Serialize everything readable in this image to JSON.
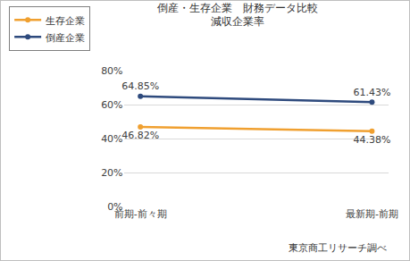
{
  "chart_data": {
    "type": "line",
    "title": "倒産・生存企業　財務データ比較",
    "subtitle": "減収企業率",
    "categories": [
      "前期-前々期",
      "最新期-前期"
    ],
    "series": [
      {
        "name": "生存企業",
        "color": "#f0a030",
        "marker": "circle",
        "line_style": "solid",
        "values": [
          46.82,
          44.38
        ],
        "value_labels": [
          "46.82%",
          "44.38%"
        ]
      },
      {
        "name": "倒産企業",
        "color": "#2e4a7d",
        "marker": "circle",
        "line_style": "solid",
        "values": [
          64.85,
          61.43
        ],
        "value_labels": [
          "64.85%",
          "61.43%"
        ]
      }
    ],
    "ylim": [
      0,
      80
    ],
    "yticks": [
      {
        "value": 0,
        "label": "0%"
      },
      {
        "value": 20,
        "label": "20%"
      },
      {
        "value": 40,
        "label": "40%"
      },
      {
        "value": 60,
        "label": "60%"
      },
      {
        "value": 80,
        "label": "80%"
      }
    ],
    "grid": true,
    "legend": "top left",
    "data_labels": true,
    "annotations": [
      "東京商工リサーチ調べ"
    ]
  }
}
